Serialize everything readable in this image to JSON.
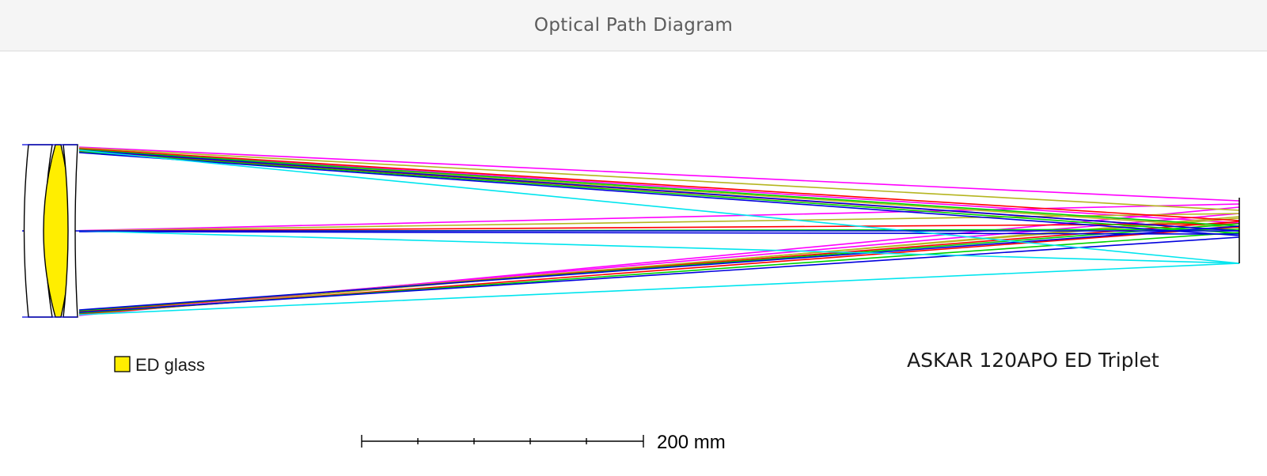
{
  "header": {
    "title": "Optical Path Diagram"
  },
  "legend": {
    "label": "ED glass",
    "swatch_color": "#ffee00"
  },
  "lens_name": "ASKAR 120APO ED Triplet",
  "scale_bar": {
    "label": "200 mm",
    "ticks": 5
  },
  "colors": {
    "ray_magenta": "#ff00ff",
    "ray_olive": "#b5b520",
    "ray_red": "#ff0000",
    "ray_green": "#00d000",
    "ray_blue": "#0000dd",
    "ray_cyan": "#00e5ee",
    "ed_element": "#ffee00",
    "element_outline": "#000000"
  }
}
